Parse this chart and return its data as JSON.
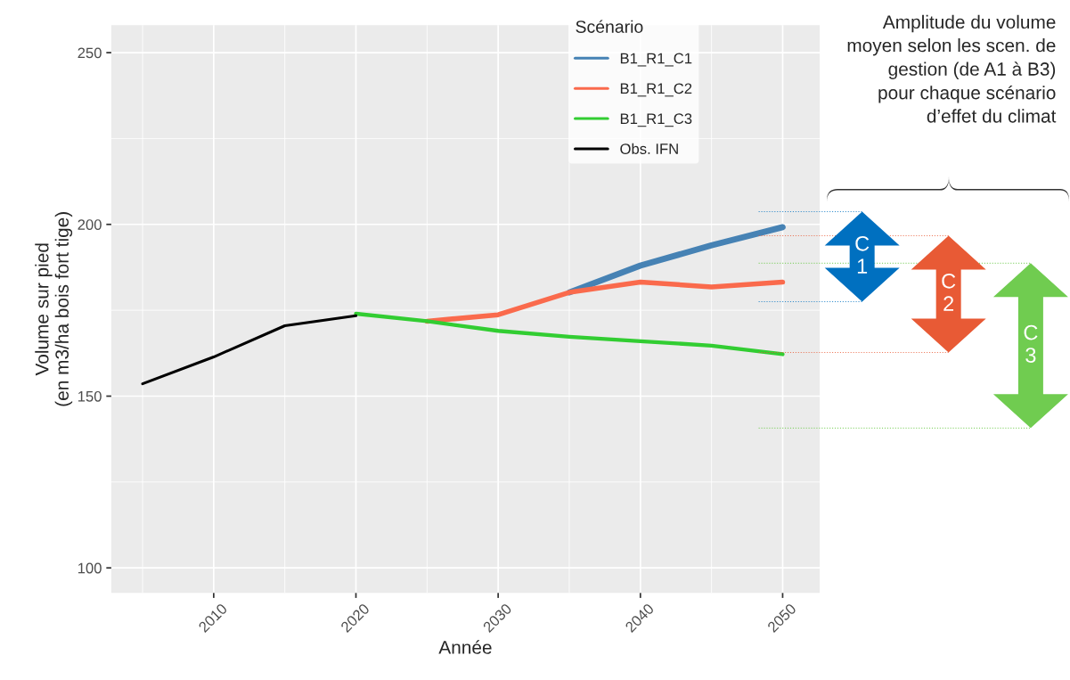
{
  "chart_data": {
    "type": "line",
    "xlabel": "Année",
    "ylabel": "Volume sur pied\n(en m3/ha bois fort tige)",
    "legend_title": "Scénario",
    "xlim": [
      2002.8,
      2052.6
    ],
    "xticks": [
      2010,
      2020,
      2030,
      2040,
      2050
    ],
    "ylim": [
      92.7,
      258
    ],
    "yticks": [
      100,
      150,
      200,
      250
    ],
    "grid": true,
    "legend": "top right",
    "line_style": "solid",
    "marker": "none",
    "series": [
      {
        "name": "B1_R1_C1",
        "color": "#4682b4",
        "x": [
          2035,
          2040,
          2045,
          2050
        ],
        "values": [
          180.2,
          188.0,
          193.9,
          199.2
        ]
      },
      {
        "name": "B1_R1_C2",
        "color": "#fa6a4c",
        "x": [
          2025,
          2030,
          2035,
          2040,
          2045,
          2050
        ],
        "values": [
          171.8,
          173.7,
          180.2,
          183.2,
          181.8,
          183.2
        ]
      },
      {
        "name": "B1_R1_C3",
        "color": "#32cd32",
        "x": [
          2020,
          2025,
          2030,
          2035,
          2040,
          2045,
          2050
        ],
        "values": [
          174.0,
          171.8,
          169.0,
          167.3,
          166.0,
          164.7,
          162.2
        ]
      },
      {
        "name": "Obs. IFN",
        "color": "#000000",
        "x": [
          2005,
          2010,
          2015,
          2020
        ],
        "values": [
          153.6,
          161.4,
          170.5,
          173.4
        ]
      }
    ],
    "ref_lines": [
      {
        "axis": "y",
        "value": 203.7,
        "label": "C\n1",
        "color": "#0070c0",
        "line_style": "dotted"
      },
      {
        "axis": "y",
        "value": 177.5,
        "color": "#0070c0",
        "line_style": "dotted"
      },
      {
        "axis": "y",
        "value": 196.7,
        "label": "C\n2",
        "color": "#e85a35",
        "line_style": "dotted"
      },
      {
        "axis": "y",
        "value": 162.7,
        "color": "#e85a35",
        "line_style": "dotted"
      },
      {
        "axis": "y",
        "value": 188.7,
        "label": "C\n3",
        "color": "#70cc50",
        "line_style": "dotted"
      },
      {
        "axis": "y",
        "value": 140.7,
        "color": "#70cc50",
        "line_style": "dotted"
      }
    ],
    "annotations": [
      "Amplitude du volume\nmoyen selon les scen. de\ngestion (de A1 à B3)\npour chaque scénario\nd’effet du climat"
    ]
  }
}
